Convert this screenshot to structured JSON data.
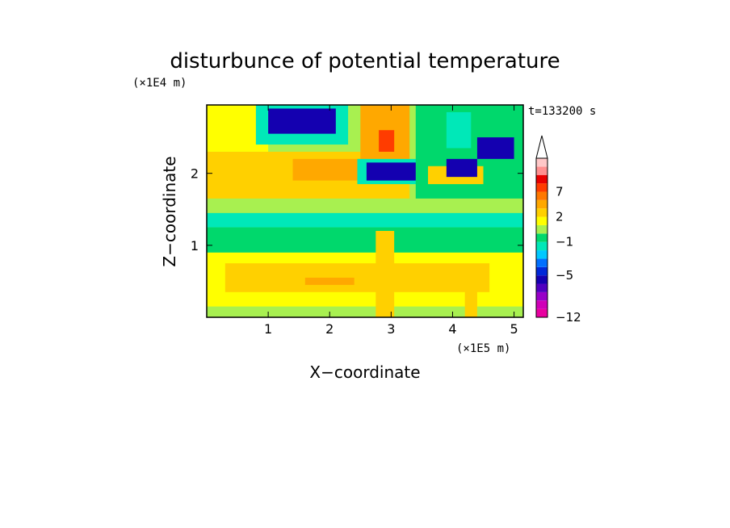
{
  "chart_data": {
    "type": "heatmap",
    "title": "disturbunce of potential temperature",
    "xlabel": "X−coordinate",
    "ylabel": "Z−coordinate",
    "x_unit": "(×1E5 m)",
    "y_unit": "(×1E4 m)",
    "time_label": "t=133200 s",
    "xlim": [
      0,
      5.15
    ],
    "ylim": [
      0,
      2.95
    ],
    "x_ticks": [
      1,
      2,
      3,
      4,
      5
    ],
    "y_ticks": [
      1,
      2
    ],
    "colorbar": {
      "bounds": [
        -12,
        -11,
        -10,
        -9,
        -7,
        -5,
        -4,
        -3,
        -2,
        -1,
        0,
        1,
        2,
        3,
        5,
        7,
        8,
        9,
        10
      ],
      "tick_labels": [
        "7",
        "2",
        "−1",
        "−5",
        "−12"
      ],
      "tick_values": [
        7,
        2,
        -1,
        -5,
        -12
      ],
      "colors": [
        "#e800a0",
        "#d000b8",
        "#9800c8",
        "#5000c0",
        "#1400b0",
        "#0028d8",
        "#0070ff",
        "#00c8ff",
        "#00e8b8",
        "#00d86c",
        "#a8f050",
        "#ffff00",
        "#ffd000",
        "#ffa800",
        "#ff7800",
        "#ff3c00",
        "#e80000",
        "#ff9090",
        "#ffc8c8"
      ],
      "extend": "max"
    },
    "background_value": 0.5,
    "regions": [
      {
        "x0": 0,
        "x1": 5.15,
        "y0": 0,
        "y1": 0.15,
        "value": 0.5
      },
      {
        "x0": 0,
        "x1": 5.15,
        "y0": 0.15,
        "y1": 0.9,
        "value": 1.6
      },
      {
        "x0": 0.3,
        "x1": 4.6,
        "y0": 0.35,
        "y1": 0.75,
        "value": 2.4
      },
      {
        "x0": 1.6,
        "x1": 2.4,
        "y0": 0.45,
        "y1": 0.55,
        "value": 4.0
      },
      {
        "x0": 0,
        "x1": 5.15,
        "y0": 0.9,
        "y1": 1.25,
        "value": -0.1
      },
      {
        "x0": 0,
        "x1": 5.15,
        "y0": 1.25,
        "y1": 1.45,
        "value": -1.4
      },
      {
        "x0": 0,
        "x1": 5.15,
        "y0": 1.45,
        "y1": 1.65,
        "value": 0.5
      },
      {
        "x0": 0,
        "x1": 3.3,
        "y0": 1.65,
        "y1": 2.3,
        "value": 2.4
      },
      {
        "x0": 1.4,
        "x1": 2.6,
        "y0": 1.9,
        "y1": 2.2,
        "value": 4.0
      },
      {
        "x0": 0,
        "x1": 1.0,
        "y0": 2.3,
        "y1": 2.95,
        "value": 1.6
      },
      {
        "x0": 0.8,
        "x1": 2.3,
        "y0": 2.4,
        "y1": 2.95,
        "value": -1.4
      },
      {
        "x0": 1.0,
        "x1": 2.1,
        "y0": 2.55,
        "y1": 2.9,
        "value": -6.0
      },
      {
        "x0": 2.5,
        "x1": 3.3,
        "y0": 2.2,
        "y1": 2.95,
        "value": 4.0
      },
      {
        "x0": 2.8,
        "x1": 3.05,
        "y0": 2.3,
        "y1": 2.6,
        "value": 7.5
      },
      {
        "x0": 2.45,
        "x1": 3.5,
        "y0": 1.85,
        "y1": 2.2,
        "value": -1.4
      },
      {
        "x0": 2.6,
        "x1": 3.5,
        "y0": 1.9,
        "y1": 2.15,
        "value": -6.0
      },
      {
        "x0": 3.4,
        "x1": 5.15,
        "y0": 1.65,
        "y1": 2.95,
        "value": -0.1
      },
      {
        "x0": 3.6,
        "x1": 4.5,
        "y0": 1.85,
        "y1": 2.1,
        "value": 2.4
      },
      {
        "x0": 3.9,
        "x1": 4.3,
        "y0": 2.35,
        "y1": 2.85,
        "value": -1.4
      },
      {
        "x0": 4.4,
        "x1": 5.0,
        "y0": 2.2,
        "y1": 2.5,
        "value": -6.0
      },
      {
        "x0": 3.9,
        "x1": 4.4,
        "y0": 1.95,
        "y1": 2.2,
        "value": -6.0
      },
      {
        "x0": 2.75,
        "x1": 3.05,
        "y0": 0,
        "y1": 1.2,
        "value": 2.4
      },
      {
        "x0": 4.2,
        "x1": 4.4,
        "y0": 0,
        "y1": 0.5,
        "value": 2.4
      }
    ]
  }
}
